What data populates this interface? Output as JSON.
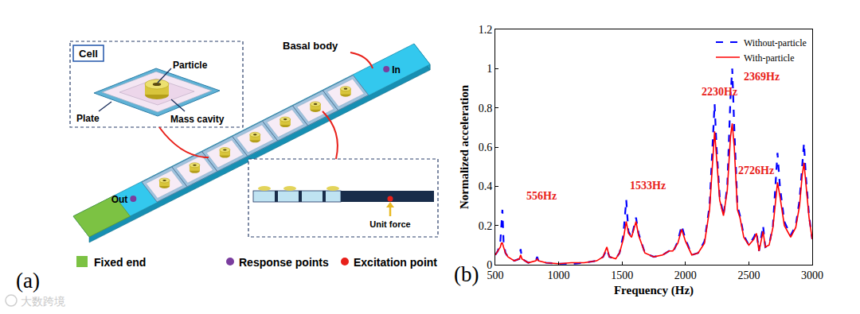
{
  "diagram": {
    "panel_label": "(a)",
    "cell_inset": {
      "title": "Cell",
      "particle": "Particle",
      "plate": "Plate",
      "mass_cavity": "Mass cavity"
    },
    "beam": {
      "basal_body": "Basal body",
      "input_point": "In",
      "output_point": "Out"
    },
    "section_inset": {
      "force_label": "Unit force"
    },
    "legend": {
      "fixed": "Fixed end",
      "response": "Response points",
      "excitation": "Excitation point"
    },
    "watermark": "大数跨境"
  },
  "chart_data": {
    "type": "line",
    "panel_label": "(b)",
    "x_label": "Frequency (Hz)",
    "y_label": "Normalized acceleration",
    "x": [
      500,
      520,
      540,
      548,
      556,
      565,
      580,
      600,
      650,
      690,
      700,
      710,
      760,
      820,
      830,
      840,
      900,
      1000,
      1100,
      1200,
      1300,
      1350,
      1380,
      1400,
      1450,
      1480,
      1510,
      1533,
      1550,
      1575,
      1595,
      1610,
      1630,
      1680,
      1750,
      1820,
      1870,
      1900,
      1940,
      1970,
      2000,
      2050,
      2100,
      2150,
      2190,
      2215,
      2230,
      2245,
      2270,
      2300,
      2330,
      2355,
      2369,
      2385,
      2410,
      2430,
      2460,
      2500,
      2540,
      2560,
      2580,
      2600,
      2612,
      2630,
      2660,
      2690,
      2710,
      2726,
      2745,
      2780,
      2830,
      2870,
      2900,
      2920,
      2935,
      2950,
      2975,
      3000
    ],
    "series": [
      {
        "name": "Without-particle",
        "color": "#0000ff",
        "line_style": "dashed",
        "values": [
          0.05,
          0.07,
          0.12,
          0.22,
          0.28,
          0.12,
          0.06,
          0.04,
          0.02,
          0.03,
          0.08,
          0.03,
          0.01,
          0.02,
          0.04,
          0.02,
          0.01,
          0.005,
          0.005,
          0.01,
          0.02,
          0.04,
          0.08,
          0.04,
          0.03,
          0.06,
          0.15,
          0.33,
          0.17,
          0.14,
          0.2,
          0.24,
          0.16,
          0.06,
          0.04,
          0.05,
          0.07,
          0.06,
          0.12,
          0.2,
          0.13,
          0.05,
          0.06,
          0.12,
          0.3,
          0.6,
          0.82,
          0.6,
          0.35,
          0.25,
          0.4,
          0.85,
          1.0,
          0.7,
          0.3,
          0.25,
          0.15,
          0.1,
          0.14,
          0.17,
          0.07,
          0.15,
          0.2,
          0.09,
          0.1,
          0.2,
          0.4,
          0.57,
          0.4,
          0.22,
          0.15,
          0.2,
          0.33,
          0.5,
          0.62,
          0.45,
          0.25,
          0.13
        ]
      },
      {
        "name": "With-particle",
        "color": "#ff0000",
        "line_style": "solid",
        "values": [
          0.05,
          0.07,
          0.09,
          0.11,
          0.11,
          0.09,
          0.06,
          0.04,
          0.02,
          0.03,
          0.05,
          0.03,
          0.01,
          0.02,
          0.03,
          0.02,
          0.01,
          0.005,
          0.01,
          0.01,
          0.02,
          0.04,
          0.09,
          0.04,
          0.03,
          0.06,
          0.13,
          0.22,
          0.16,
          0.14,
          0.19,
          0.22,
          0.15,
          0.06,
          0.04,
          0.05,
          0.07,
          0.07,
          0.11,
          0.18,
          0.12,
          0.05,
          0.06,
          0.11,
          0.28,
          0.55,
          0.68,
          0.55,
          0.33,
          0.25,
          0.38,
          0.65,
          0.72,
          0.6,
          0.28,
          0.24,
          0.14,
          0.1,
          0.13,
          0.16,
          0.07,
          0.13,
          0.17,
          0.09,
          0.1,
          0.19,
          0.33,
          0.42,
          0.35,
          0.2,
          0.14,
          0.19,
          0.3,
          0.45,
          0.52,
          0.42,
          0.24,
          0.13
        ]
      }
    ],
    "xlim": [
      500,
      3000
    ],
    "xticks": [
      500,
      1000,
      1500,
      2000,
      2500,
      3000
    ],
    "ylim": [
      0,
      1.2
    ],
    "yticks": [
      0,
      0.2,
      0.4,
      0.6,
      0.8,
      1,
      1.2
    ],
    "grid": false,
    "legend": "upper right",
    "annotations": [
      {
        "text": "556Hz",
        "x": 864,
        "y": 0.35
      },
      {
        "text": "1533Hz",
        "x": 1700,
        "y": 0.405
      },
      {
        "text": "2230Hz",
        "x": 2271,
        "y": 0.88
      },
      {
        "text": "2369Hz",
        "x": 2604,
        "y": 0.96
      },
      {
        "text": "2726Hz",
        "x": 2560,
        "y": 0.48
      }
    ]
  }
}
